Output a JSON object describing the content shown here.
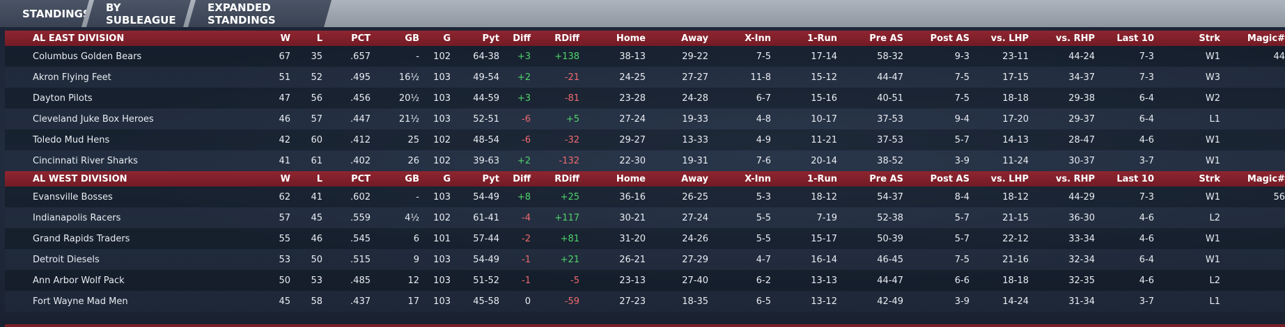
{
  "tabs": [
    {
      "label": "STANDINGS"
    },
    {
      "label": "BY SUBLEAGUE"
    },
    {
      "label": "EXPANDED STANDINGS"
    }
  ],
  "columns": [
    "W",
    "L",
    "PCT",
    "GB",
    "G",
    "Pyt",
    "Diff",
    "RDiff",
    "Home",
    "Away",
    "X-Inn",
    "1-Run",
    "Pre AS",
    "Post AS",
    "vs. LHP",
    "vs. RHP",
    "Last 10",
    "Strk",
    "Magic#"
  ],
  "divisions": [
    {
      "name": "AL EAST DIVISION",
      "rows": [
        {
          "team": "Columbus Golden Bears",
          "w": "67",
          "l": "35",
          "pct": ".657",
          "gb": "-",
          "g": "102",
          "pyt": "64-38",
          "diff": "+3",
          "rdiff": "+138",
          "home": "38-13",
          "away": "29-22",
          "xinn": "7-5",
          "onerun": "17-14",
          "preas": "58-32",
          "postas": "9-3",
          "vlhp": "23-11",
          "vrhp": "44-24",
          "last10": "7-3",
          "strk": "W1",
          "magic": "44"
        },
        {
          "team": "Akron  Flying Feet",
          "w": "51",
          "l": "52",
          "pct": ".495",
          "gb": "16½",
          "g": "103",
          "pyt": "49-54",
          "diff": "+2",
          "rdiff": "-21",
          "home": "24-25",
          "away": "27-27",
          "xinn": "11-8",
          "onerun": "15-12",
          "preas": "44-47",
          "postas": "7-5",
          "vlhp": "17-15",
          "vrhp": "34-37",
          "last10": "7-3",
          "strk": "W3",
          "magic": ""
        },
        {
          "team": "Dayton Pilots",
          "w": "47",
          "l": "56",
          "pct": ".456",
          "gb": "20½",
          "g": "103",
          "pyt": "44-59",
          "diff": "+3",
          "rdiff": "-81",
          "home": "23-28",
          "away": "24-28",
          "xinn": "6-7",
          "onerun": "15-16",
          "preas": "40-51",
          "postas": "7-5",
          "vlhp": "18-18",
          "vrhp": "29-38",
          "last10": "6-4",
          "strk": "W2",
          "magic": ""
        },
        {
          "team": "Cleveland Juke Box Heroes",
          "w": "46",
          "l": "57",
          "pct": ".447",
          "gb": "21½",
          "g": "103",
          "pyt": "52-51",
          "diff": "-6",
          "rdiff": "+5",
          "home": "27-24",
          "away": "19-33",
          "xinn": "4-8",
          "onerun": "10-17",
          "preas": "37-53",
          "postas": "9-4",
          "vlhp": "17-20",
          "vrhp": "29-37",
          "last10": "6-4",
          "strk": "L1",
          "magic": ""
        },
        {
          "team": "Toledo  Mud Hens",
          "w": "42",
          "l": "60",
          "pct": ".412",
          "gb": "25",
          "g": "102",
          "pyt": "48-54",
          "diff": "-6",
          "rdiff": "-32",
          "home": "29-27",
          "away": "13-33",
          "xinn": "4-9",
          "onerun": "11-21",
          "preas": "37-53",
          "postas": "5-7",
          "vlhp": "14-13",
          "vrhp": "28-47",
          "last10": "4-6",
          "strk": "W1",
          "magic": ""
        },
        {
          "team": "Cincinnati River Sharks",
          "w": "41",
          "l": "61",
          "pct": ".402",
          "gb": "26",
          "g": "102",
          "pyt": "39-63",
          "diff": "+2",
          "rdiff": "-132",
          "home": "22-30",
          "away": "19-31",
          "xinn": "7-6",
          "onerun": "20-14",
          "preas": "38-52",
          "postas": "3-9",
          "vlhp": "11-24",
          "vrhp": "30-37",
          "last10": "3-7",
          "strk": "W1",
          "magic": ""
        }
      ]
    },
    {
      "name": "AL WEST DIVISION",
      "rows": [
        {
          "team": "Evansville Bosses",
          "w": "62",
          "l": "41",
          "pct": ".602",
          "gb": "-",
          "g": "103",
          "pyt": "54-49",
          "diff": "+8",
          "rdiff": "+25",
          "home": "36-16",
          "away": "26-25",
          "xinn": "5-3",
          "onerun": "18-12",
          "preas": "54-37",
          "postas": "8-4",
          "vlhp": "18-12",
          "vrhp": "44-29",
          "last10": "7-3",
          "strk": "W1",
          "magic": "56"
        },
        {
          "team": "Indianapolis Racers",
          "w": "57",
          "l": "45",
          "pct": ".559",
          "gb": "4½",
          "g": "102",
          "pyt": "61-41",
          "diff": "-4",
          "rdiff": "+117",
          "home": "30-21",
          "away": "27-24",
          "xinn": "5-5",
          "onerun": "7-19",
          "preas": "52-38",
          "postas": "5-7",
          "vlhp": "21-15",
          "vrhp": "36-30",
          "last10": "4-6",
          "strk": "L2",
          "magic": ""
        },
        {
          "team": "Grand Rapids Traders",
          "w": "55",
          "l": "46",
          "pct": ".545",
          "gb": "6",
          "g": "101",
          "pyt": "57-44",
          "diff": "-2",
          "rdiff": "+81",
          "home": "31-20",
          "away": "24-26",
          "xinn": "5-5",
          "onerun": "15-17",
          "preas": "50-39",
          "postas": "5-7",
          "vlhp": "22-12",
          "vrhp": "33-34",
          "last10": "4-6",
          "strk": "W1",
          "magic": ""
        },
        {
          "team": "Detroit Diesels",
          "w": "53",
          "l": "50",
          "pct": ".515",
          "gb": "9",
          "g": "103",
          "pyt": "54-49",
          "diff": "-1",
          "rdiff": "+21",
          "home": "26-21",
          "away": "27-29",
          "xinn": "4-7",
          "onerun": "16-14",
          "preas": "46-45",
          "postas": "7-5",
          "vlhp": "21-16",
          "vrhp": "32-34",
          "last10": "6-4",
          "strk": "W1",
          "magic": ""
        },
        {
          "team": "Ann Arbor Wolf Pack",
          "w": "50",
          "l": "53",
          "pct": ".485",
          "gb": "12",
          "g": "103",
          "pyt": "51-52",
          "diff": "-1",
          "rdiff": "-5",
          "home": "23-13",
          "away": "27-40",
          "xinn": "6-2",
          "onerun": "13-13",
          "preas": "44-47",
          "postas": "6-6",
          "vlhp": "18-18",
          "vrhp": "32-35",
          "last10": "4-6",
          "strk": "L2",
          "magic": ""
        },
        {
          "team": "Fort Wayne Mad Men",
          "w": "45",
          "l": "58",
          "pct": ".437",
          "gb": "17",
          "g": "103",
          "pyt": "45-58",
          "diff": "0",
          "rdiff": "-59",
          "home": "27-23",
          "away": "18-35",
          "xinn": "6-5",
          "onerun": "13-12",
          "preas": "42-49",
          "postas": "3-9",
          "vlhp": "14-24",
          "vrhp": "31-34",
          "last10": "3-7",
          "strk": "L1",
          "magic": ""
        }
      ]
    }
  ],
  "colors": {
    "positive": "#4fd46b",
    "negative": "#f06a6f",
    "division_header": "#8e2530",
    "tab_bg": "#434c5c",
    "tabbar_bg": "#a0a7b0"
  }
}
